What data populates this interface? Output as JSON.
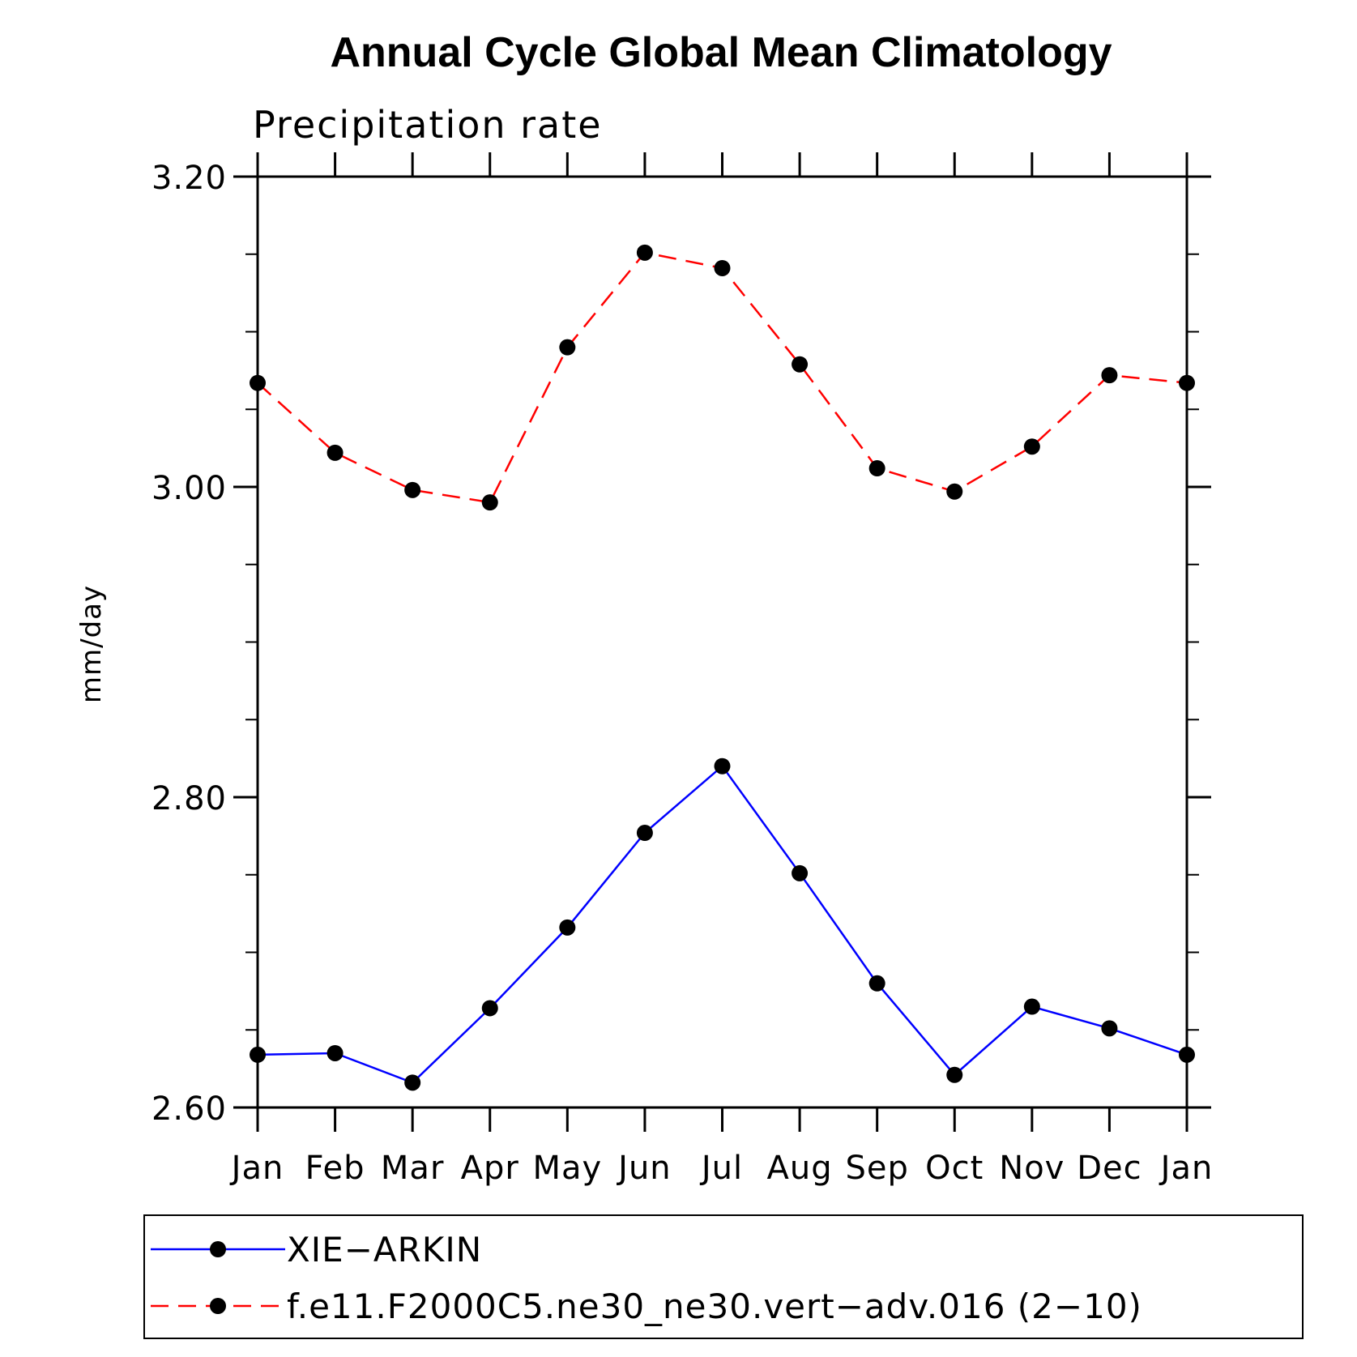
{
  "chart_data": {
    "type": "line",
    "title": "Annual Cycle Global Mean Climatology",
    "subtitle": "Precipitation rate",
    "xlabel": "",
    "ylabel": "mm/day",
    "categories": [
      "Jan",
      "Feb",
      "Mar",
      "Apr",
      "May",
      "Jun",
      "Jul",
      "Aug",
      "Sep",
      "Oct",
      "Nov",
      "Dec",
      "Jan"
    ],
    "ylim": [
      2.6,
      3.2
    ],
    "yticks": [
      2.6,
      2.8,
      3.0,
      3.2
    ],
    "ytick_labels": [
      "2.60",
      "2.80",
      "3.00",
      "3.20"
    ],
    "minor_step": 0.05,
    "grid": false,
    "legend_position": "bottom",
    "series": [
      {
        "name": "XIE−ARKIN",
        "color": "#0000ff",
        "line_style": "solid",
        "marker": "filled-circle",
        "values": [
          2.634,
          2.635,
          2.616,
          2.664,
          2.716,
          2.777,
          2.82,
          2.751,
          2.68,
          2.621,
          2.665,
          2.651,
          2.634
        ]
      },
      {
        "name": "f.e11.F2000C5.ne30_ne30.vert−adv.016 (2−10)",
        "color": "#ff0000",
        "line_style": "dashed",
        "marker": "filled-circle",
        "values": [
          3.067,
          3.022,
          2.998,
          2.99,
          3.09,
          3.151,
          3.141,
          3.079,
          3.012,
          2.997,
          3.026,
          3.072,
          3.067
        ]
      }
    ]
  }
}
